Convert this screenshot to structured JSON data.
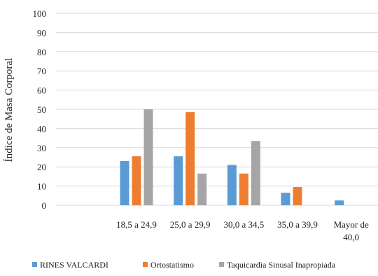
{
  "chart_data": {
    "type": "bar",
    "title": "",
    "xlabel": "",
    "ylabel": "Índice de Masa Corporal",
    "ylim": [
      0,
      100
    ],
    "yticks": [
      0,
      10,
      20,
      30,
      40,
      50,
      60,
      70,
      80,
      90,
      100
    ],
    "grid": true,
    "legend_position": "bottom",
    "categories": [
      {
        "lines": [
          ""
        ]
      },
      {
        "lines": [
          "18,5 a 24,9"
        ]
      },
      {
        "lines": [
          "25,0 a 29,9"
        ]
      },
      {
        "lines": [
          "30,0 a 34,5"
        ]
      },
      {
        "lines": [
          "35,0 a 39,9"
        ]
      },
      {
        "lines": [
          "Mayor de",
          "40,0"
        ]
      }
    ],
    "series": [
      {
        "name": "RINES VALCARDI",
        "color": "#5b9bd5",
        "values": [
          null,
          23,
          25.5,
          21,
          6.5,
          2.5
        ]
      },
      {
        "name": "Ortostatismo",
        "color": "#ed7d31",
        "values": [
          null,
          25.5,
          48.5,
          16.5,
          9.5,
          null
        ]
      },
      {
        "name": "Taquicardia Sinusal Inapropiada",
        "color": "#a5a5a5",
        "values": [
          null,
          50,
          16.5,
          33.5,
          null,
          null
        ]
      }
    ]
  }
}
